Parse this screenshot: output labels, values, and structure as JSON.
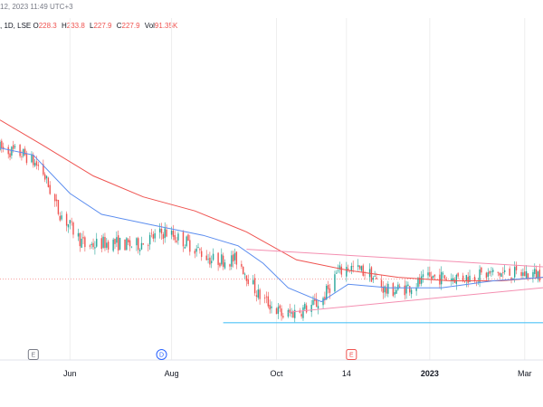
{
  "header": {
    "timestamp_text": "12, 2023 11:49 UTC+3",
    "symbol_meta": ", 1D, LSE",
    "ohlc": [
      {
        "key": "O",
        "value": "228.3"
      },
      {
        "key": "H",
        "value": "233.8"
      },
      {
        "key": "L",
        "value": "227.9"
      },
      {
        "key": "C",
        "value": "227.9"
      },
      {
        "key": "Vol",
        "value": "91.35K"
      }
    ]
  },
  "colors": {
    "up": "#26a69a",
    "down": "#ef5350",
    "ma_long": "#ef5350",
    "ma_short": "#5b8def",
    "support": "#4fc3f7",
    "trendline": "#f48fb1",
    "grid": "#eeeeee"
  },
  "events": [
    {
      "letter": "E",
      "date": "2022-05-10",
      "color": "#787b86"
    },
    {
      "letter": "D",
      "date": "2022-07-26",
      "color": "#2962ff"
    },
    {
      "letter": "E",
      "date": "2022-11-17",
      "color": "#ef5350"
    }
  ],
  "chart_data": {
    "type": "candlestick",
    "x_axis": {
      "range": [
        "2022-04-20",
        "2023-03-12"
      ],
      "ticks": [
        {
          "label": "Jun",
          "date": "2022-06-01",
          "bold": false
        },
        {
          "label": "Aug",
          "date": "2022-08-01",
          "bold": false
        },
        {
          "label": "Oct",
          "date": "2022-10-03",
          "bold": false
        },
        {
          "label": "14",
          "date": "2022-11-14",
          "bold": false
        },
        {
          "label": "2023",
          "date": "2023-01-03",
          "bold": true
        },
        {
          "label": "Mar",
          "date": "2023-03-01",
          "bold": false
        }
      ]
    },
    "y_range": [
      212,
      300
    ],
    "price_anchors": [
      [
        "2022-04-20",
        268
      ],
      [
        "2022-05-05",
        266
      ],
      [
        "2022-05-15",
        262
      ],
      [
        "2022-05-25",
        250
      ],
      [
        "2022-06-10",
        240
      ],
      [
        "2022-06-25",
        241
      ],
      [
        "2022-07-10",
        240
      ],
      [
        "2022-07-28",
        244
      ],
      [
        "2022-08-10",
        241
      ],
      [
        "2022-08-25",
        236
      ],
      [
        "2022-09-10",
        236
      ],
      [
        "2022-09-22",
        226
      ],
      [
        "2022-10-07",
        220
      ],
      [
        "2022-10-20",
        222
      ],
      [
        "2022-10-30",
        224
      ],
      [
        "2022-11-08",
        232
      ],
      [
        "2022-11-15",
        234
      ],
      [
        "2022-11-28",
        232
      ],
      [
        "2022-12-08",
        227
      ],
      [
        "2022-12-20",
        228
      ],
      [
        "2023-01-05",
        231
      ],
      [
        "2023-01-25",
        231
      ],
      [
        "2023-02-10",
        232
      ],
      [
        "2023-02-28",
        232
      ],
      [
        "2023-03-12",
        232
      ]
    ],
    "series": [
      {
        "kind": "ma",
        "color_key": "ma_long",
        "points": [
          [
            "2022-04-20",
            276
          ],
          [
            "2022-05-15",
            269
          ],
          [
            "2022-06-15",
            260
          ],
          [
            "2022-07-15",
            254
          ],
          [
            "2022-08-15",
            250
          ],
          [
            "2022-09-15",
            244
          ],
          [
            "2022-10-15",
            236
          ],
          [
            "2022-11-15",
            233
          ],
          [
            "2022-12-15",
            231
          ],
          [
            "2023-01-15",
            230
          ],
          [
            "2023-02-15",
            230
          ],
          [
            "2023-03-12",
            231
          ]
        ]
      },
      {
        "kind": "ma",
        "color_key": "ma_short",
        "points": [
          [
            "2022-04-20",
            268
          ],
          [
            "2022-05-10",
            266
          ],
          [
            "2022-06-01",
            255
          ],
          [
            "2022-06-20",
            249
          ],
          [
            "2022-07-20",
            246
          ],
          [
            "2022-08-20",
            243
          ],
          [
            "2022-09-10",
            240
          ],
          [
            "2022-09-25",
            235
          ],
          [
            "2022-10-10",
            228
          ],
          [
            "2022-10-30",
            224
          ],
          [
            "2022-11-15",
            229
          ],
          [
            "2022-12-10",
            228
          ],
          [
            "2023-01-10",
            228
          ],
          [
            "2023-02-10",
            230
          ],
          [
            "2023-03-12",
            231
          ]
        ]
      }
    ],
    "lines": [
      {
        "kind": "trend",
        "color_key": "trendline",
        "from": [
          "2022-09-15",
          239
        ],
        "to": [
          "2023-03-12",
          234
        ]
      },
      {
        "kind": "trend",
        "color_key": "trendline",
        "from": [
          "2022-10-10",
          221
        ],
        "to": [
          "2023-03-12",
          228
        ]
      },
      {
        "kind": "support",
        "color_key": "support",
        "from": [
          "2022-09-01",
          218
        ],
        "to": [
          "2023-03-12",
          218
        ]
      },
      {
        "kind": "price",
        "color_key": "down",
        "from": [
          "2022-04-20",
          230.5
        ],
        "to": [
          "2023-03-12",
          230.5
        ]
      }
    ]
  }
}
